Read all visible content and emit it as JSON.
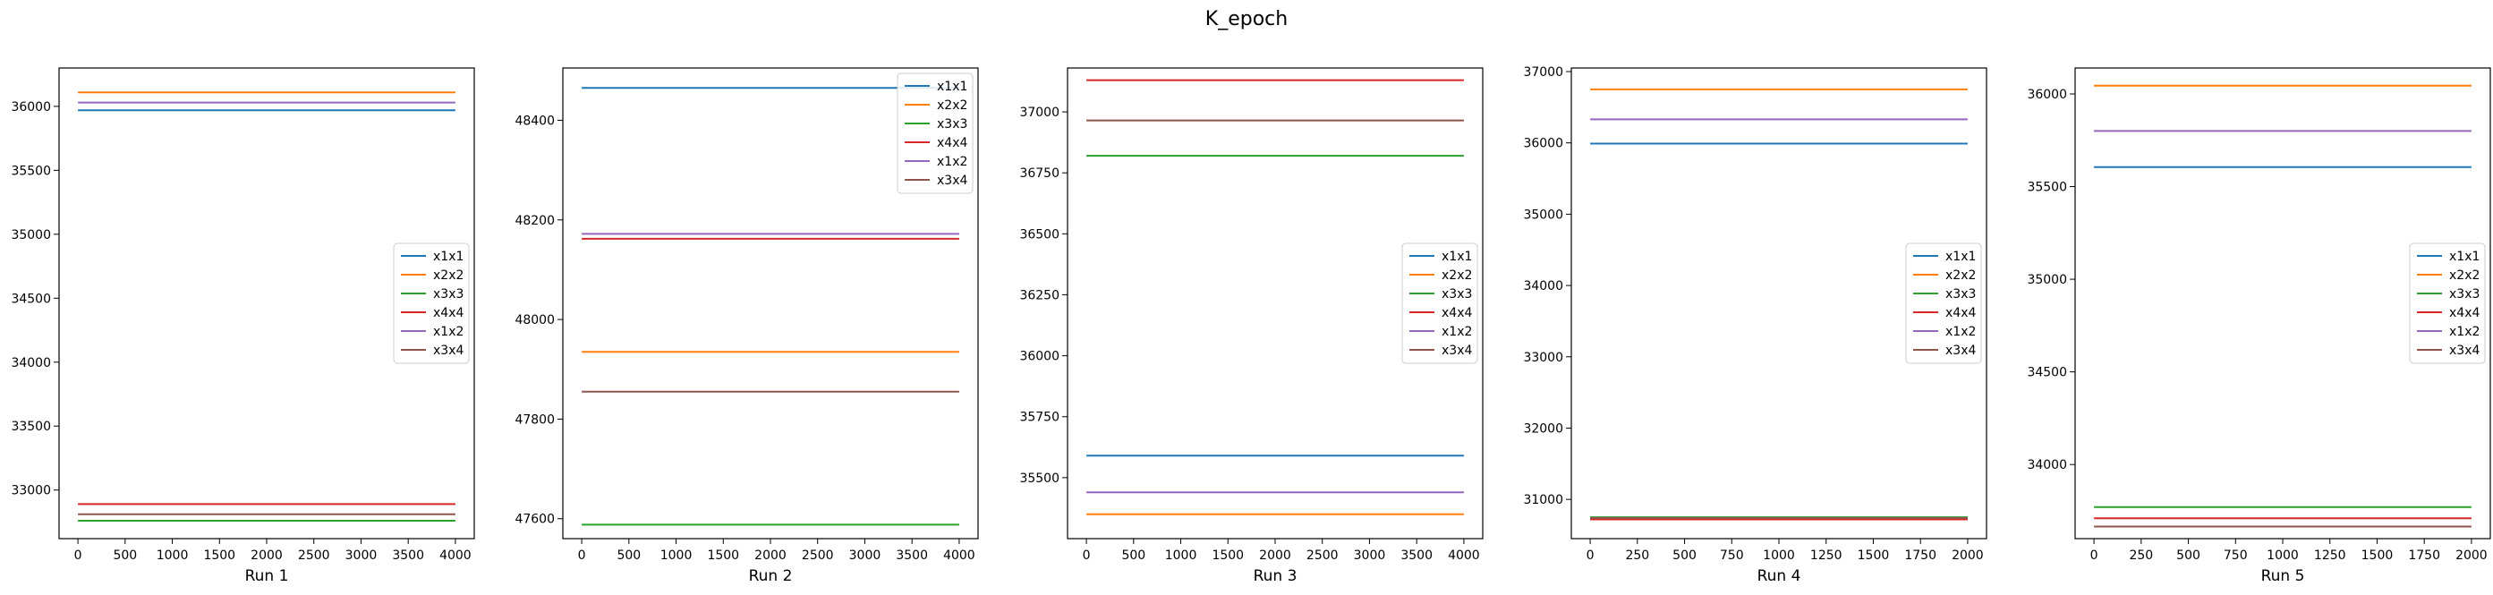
{
  "figure": {
    "suptitle": "K_epoch"
  },
  "legend_entries": [
    "x1x1",
    "x2x2",
    "x3x3",
    "x4x4",
    "x1x2",
    "x3x4"
  ],
  "colors": [
    "#1f77b4",
    "#ff7f0e",
    "#2ca02c",
    "#d62728",
    "#9467bd",
    "#8c564b"
  ],
  "chart_data": [
    {
      "type": "line",
      "title": "",
      "xlabel": "Run 1",
      "ylabel": "",
      "xlim": [
        -200,
        4200
      ],
      "ylim": [
        32620,
        36300
      ],
      "xticks": [
        0,
        500,
        1000,
        1500,
        2000,
        2500,
        3000,
        3500,
        4000
      ],
      "yticks": [
        33000,
        33500,
        34000,
        34500,
        35000,
        35500,
        36000
      ],
      "legend_loc": "center-right",
      "series": [
        {
          "name": "x1x1",
          "x": [
            0,
            4000
          ],
          "y": [
            35970,
            35970
          ]
        },
        {
          "name": "x2x2",
          "x": [
            0,
            4000
          ],
          "y": [
            36110,
            36110
          ]
        },
        {
          "name": "x3x3",
          "x": [
            0,
            4000
          ],
          "y": [
            32760,
            32760
          ]
        },
        {
          "name": "x4x4",
          "x": [
            0,
            4000
          ],
          "y": [
            32890,
            32890
          ]
        },
        {
          "name": "x1x2",
          "x": [
            0,
            4000
          ],
          "y": [
            36030,
            36030
          ]
        },
        {
          "name": "x3x4",
          "x": [
            0,
            4000
          ],
          "y": [
            32810,
            32810
          ]
        }
      ]
    },
    {
      "type": "line",
      "title": "",
      "xlabel": "Run 2",
      "ylabel": "",
      "xlim": [
        -200,
        4200
      ],
      "ylim": [
        47560,
        48505
      ],
      "xticks": [
        0,
        500,
        1000,
        1500,
        2000,
        2500,
        3000,
        3500,
        4000
      ],
      "yticks": [
        47600,
        47800,
        48000,
        48200,
        48400
      ],
      "legend_loc": "upper-right",
      "series": [
        {
          "name": "x1x1",
          "x": [
            0,
            4000
          ],
          "y": [
            48465,
            48465
          ]
        },
        {
          "name": "x2x2",
          "x": [
            0,
            4000
          ],
          "y": [
            47935,
            47935
          ]
        },
        {
          "name": "x3x3",
          "x": [
            0,
            4000
          ],
          "y": [
            47588,
            47588
          ]
        },
        {
          "name": "x4x4",
          "x": [
            0,
            4000
          ],
          "y": [
            48162,
            48162
          ]
        },
        {
          "name": "x1x2",
          "x": [
            0,
            4000
          ],
          "y": [
            48172,
            48172
          ]
        },
        {
          "name": "x3x4",
          "x": [
            0,
            4000
          ],
          "y": [
            47855,
            47855
          ]
        }
      ]
    },
    {
      "type": "line",
      "title": "",
      "xlabel": "Run 3",
      "ylabel": "",
      "xlim": [
        -200,
        4200
      ],
      "ylim": [
        35250,
        37180
      ],
      "xticks": [
        0,
        500,
        1000,
        1500,
        2000,
        2500,
        3000,
        3500,
        4000
      ],
      "yticks": [
        35500,
        35750,
        36000,
        36250,
        36500,
        36750,
        37000
      ],
      "legend_loc": "center-right",
      "series": [
        {
          "name": "x1x1",
          "x": [
            0,
            4000
          ],
          "y": [
            35590,
            35590
          ]
        },
        {
          "name": "x2x2",
          "x": [
            0,
            4000
          ],
          "y": [
            35350,
            35350
          ]
        },
        {
          "name": "x3x3",
          "x": [
            0,
            4000
          ],
          "y": [
            36820,
            36820
          ]
        },
        {
          "name": "x4x4",
          "x": [
            0,
            4000
          ],
          "y": [
            37130,
            37130
          ]
        },
        {
          "name": "x1x2",
          "x": [
            0,
            4000
          ],
          "y": [
            35440,
            35440
          ]
        },
        {
          "name": "x3x4",
          "x": [
            0,
            4000
          ],
          "y": [
            36965,
            36965
          ]
        }
      ]
    },
    {
      "type": "line",
      "title": "",
      "xlabel": "Run 4",
      "ylabel": "",
      "xlim": [
        -100,
        2100
      ],
      "ylim": [
        30450,
        37050
      ],
      "xticks": [
        0,
        250,
        500,
        750,
        1000,
        1250,
        1500,
        1750,
        2000
      ],
      "yticks": [
        31000,
        32000,
        33000,
        34000,
        35000,
        36000,
        37000
      ],
      "legend_loc": "center-right",
      "series": [
        {
          "name": "x1x1",
          "x": [
            0,
            2000
          ],
          "y": [
            35990,
            35990
          ]
        },
        {
          "name": "x2x2",
          "x": [
            0,
            2000
          ],
          "y": [
            36750,
            36750
          ]
        },
        {
          "name": "x3x3",
          "x": [
            0,
            2000
          ],
          "y": [
            30750,
            30750
          ]
        },
        {
          "name": "x4x4",
          "x": [
            0,
            2000
          ],
          "y": [
            30720,
            30720
          ]
        },
        {
          "name": "x1x2",
          "x": [
            0,
            2000
          ],
          "y": [
            36330,
            36330
          ]
        },
        {
          "name": "x3x4",
          "x": [
            0,
            2000
          ],
          "y": [
            30740,
            30740
          ]
        }
      ]
    },
    {
      "type": "line",
      "title": "",
      "xlabel": "Run 5",
      "ylabel": "",
      "xlim": [
        -100,
        2100
      ],
      "ylim": [
        33600,
        36140
      ],
      "xticks": [
        0,
        250,
        500,
        750,
        1000,
        1250,
        1500,
        1750,
        2000
      ],
      "yticks": [
        34000,
        34500,
        35000,
        35500,
        36000
      ],
      "legend_loc": "center-right",
      "series": [
        {
          "name": "x1x1",
          "x": [
            0,
            2000
          ],
          "y": [
            35605,
            35605
          ]
        },
        {
          "name": "x2x2",
          "x": [
            0,
            2000
          ],
          "y": [
            36045,
            36045
          ]
        },
        {
          "name": "x3x3",
          "x": [
            0,
            2000
          ],
          "y": [
            33770,
            33770
          ]
        },
        {
          "name": "x4x4",
          "x": [
            0,
            2000
          ],
          "y": [
            33710,
            33710
          ]
        },
        {
          "name": "x1x2",
          "x": [
            0,
            2000
          ],
          "y": [
            35800,
            35800
          ]
        },
        {
          "name": "x3x4",
          "x": [
            0,
            2000
          ],
          "y": [
            33665,
            33665
          ]
        }
      ]
    }
  ]
}
